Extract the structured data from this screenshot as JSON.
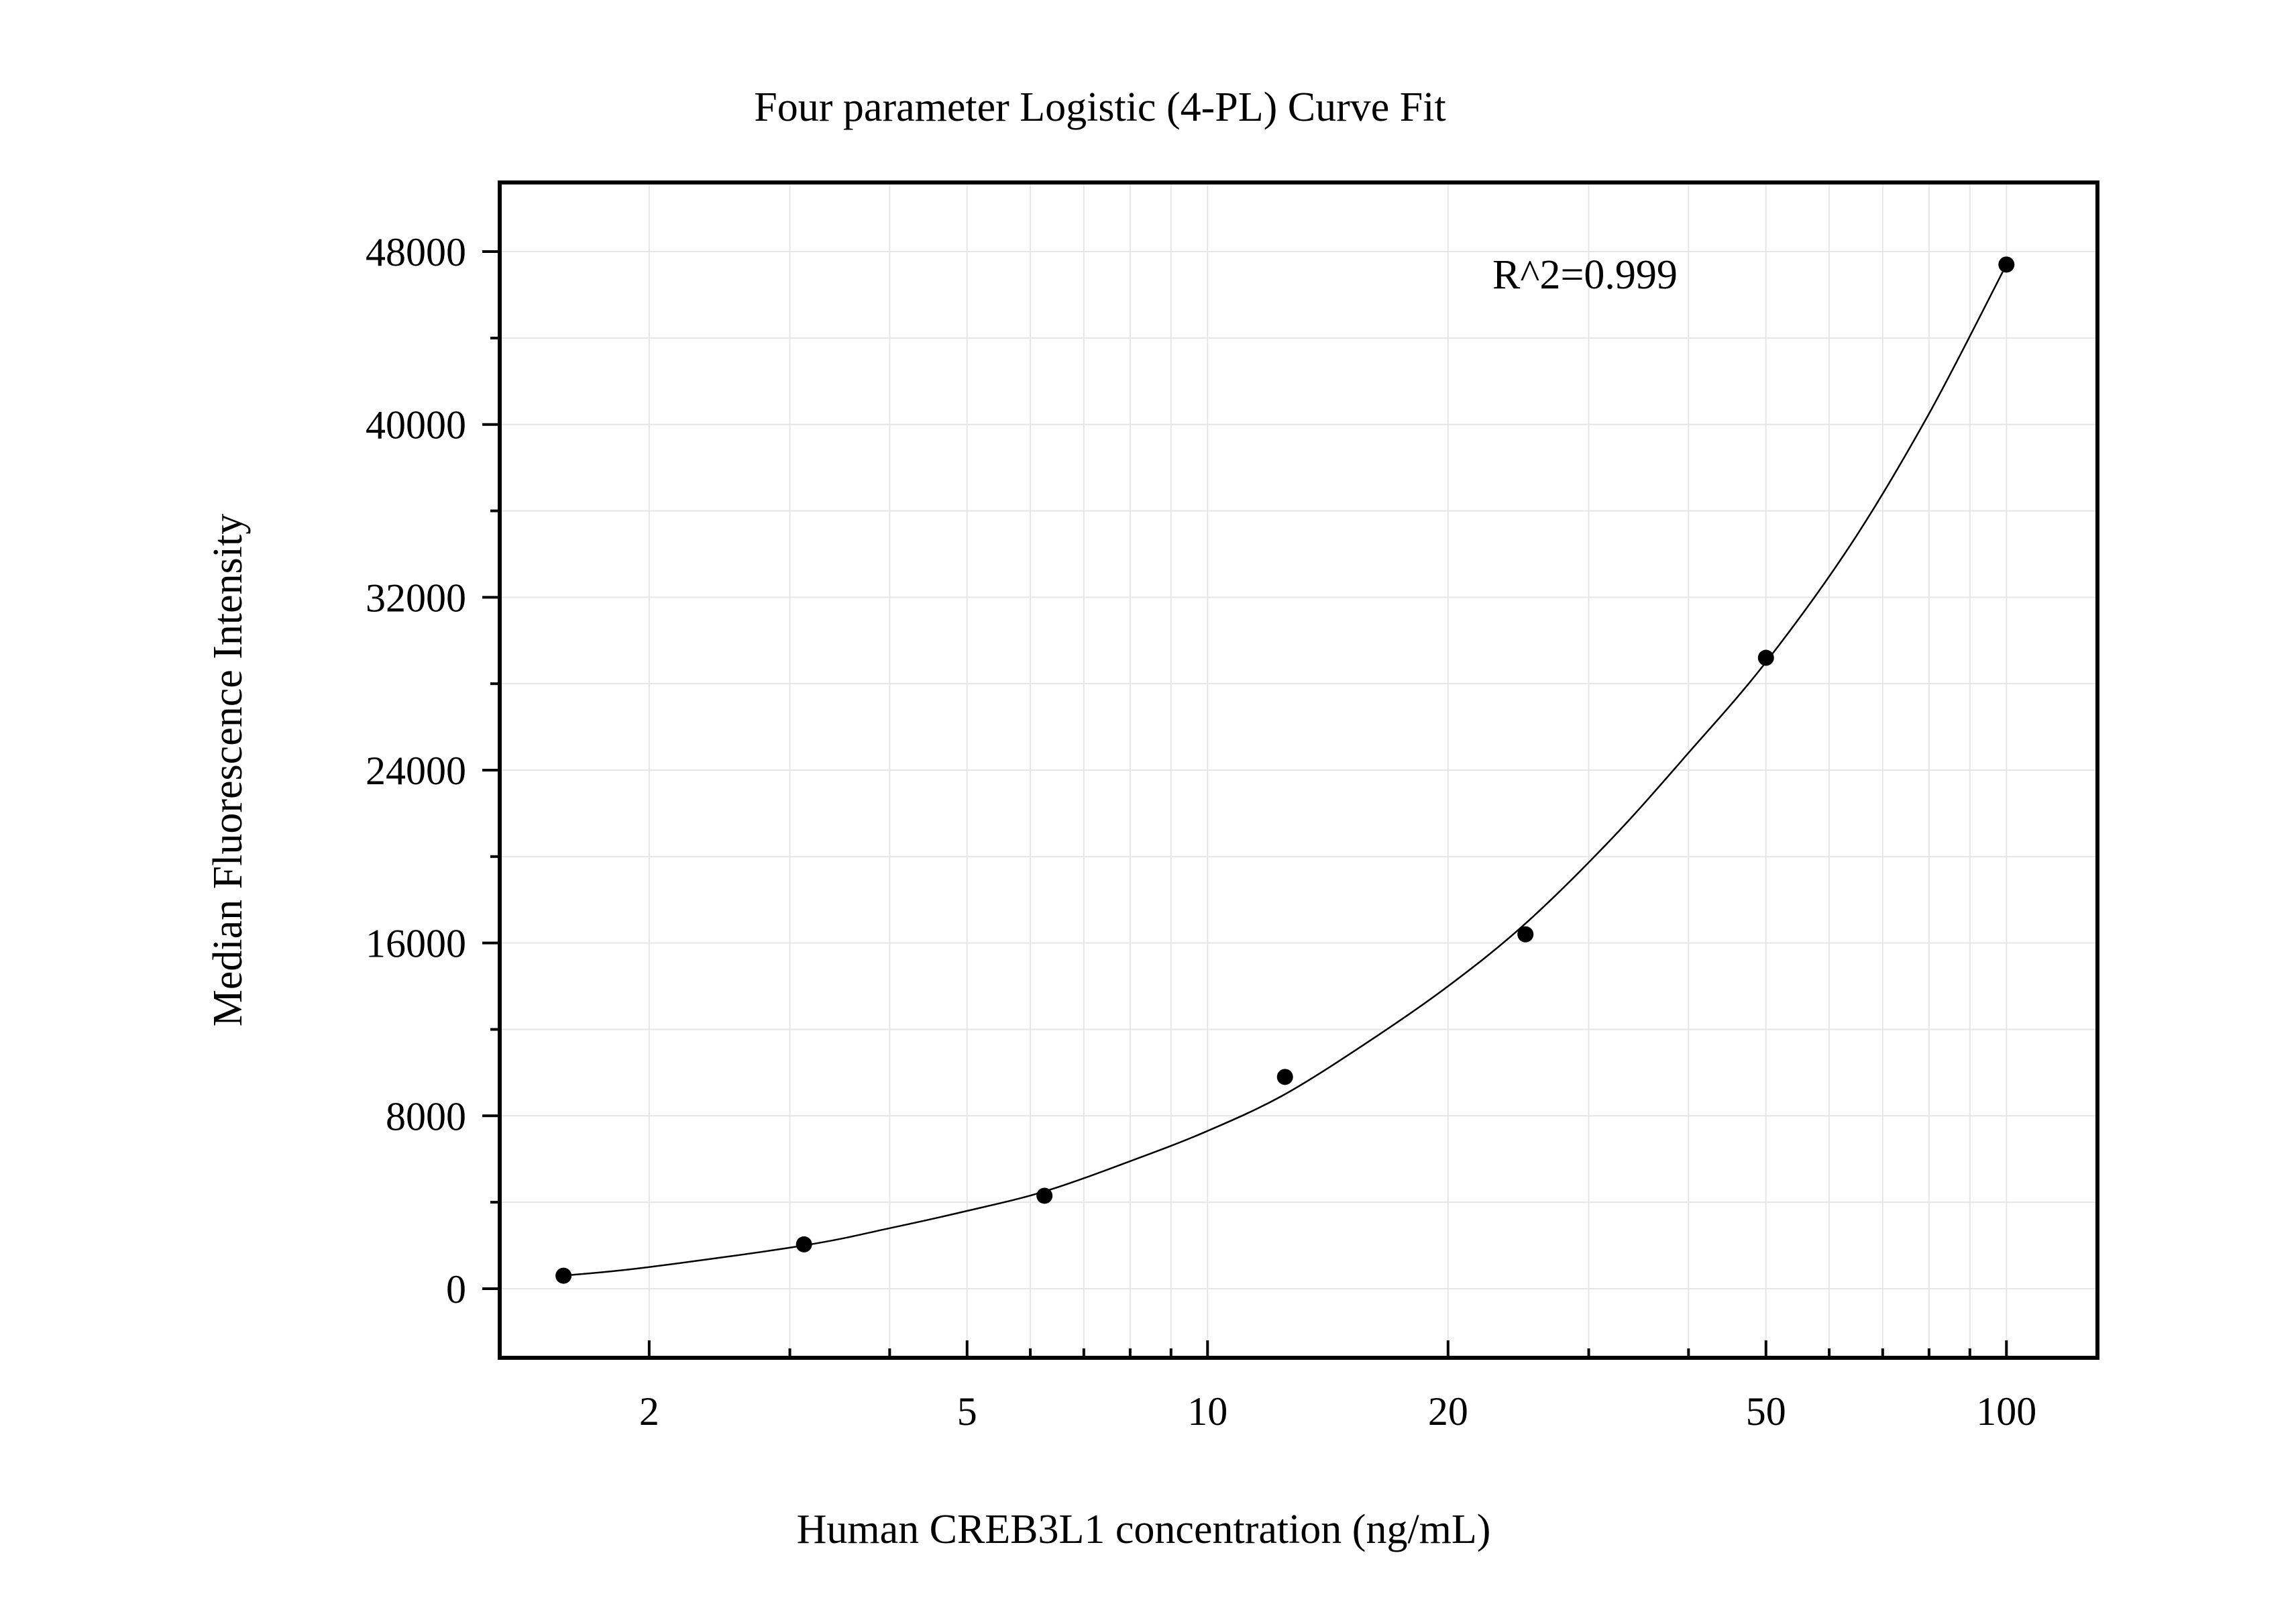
{
  "chart_data": {
    "type": "scatter",
    "title": "Four parameter Logistic (4-PL) Curve Fit",
    "xlabel": "Human CREB3L1 concentration (ng/mL)",
    "ylabel": "Median Fluorescence Intensity",
    "x_scale": "log",
    "xlim": [
      1.3,
      130
    ],
    "ylim": [
      -3200,
      51200
    ],
    "x_ticks": [
      2,
      5,
      10,
      20,
      50,
      100
    ],
    "x_tick_labels": [
      "2",
      "5",
      "10",
      "20",
      "50",
      "100"
    ],
    "y_ticks": [
      0,
      8000,
      16000,
      24000,
      32000,
      40000,
      48000
    ],
    "y_tick_labels": [
      "0",
      "8000",
      "16000",
      "24000",
      "32000",
      "40000",
      "48000"
    ],
    "grid": true,
    "annotation": "R^2=0.999",
    "series": [
      {
        "x": [
          1.5625,
          3.125,
          6.25,
          12.5,
          25,
          50,
          100
        ],
        "y": [
          600,
          2050,
          4300,
          9800,
          16400,
          29200,
          47400
        ]
      }
    ],
    "fit_curve": {
      "type": "4-PL",
      "x": [
        1.5625,
        2,
        3.125,
        4,
        5,
        6.25,
        8,
        10,
        12.5,
        16,
        20,
        25,
        32,
        40,
        50,
        64,
        80,
        100
      ],
      "y": [
        600,
        1000,
        2000,
        2800,
        3600,
        4500,
        5900,
        7300,
        9000,
        11500,
        14000,
        16900,
        20800,
        24800,
        29000,
        34500,
        40500,
        47400
      ]
    }
  }
}
